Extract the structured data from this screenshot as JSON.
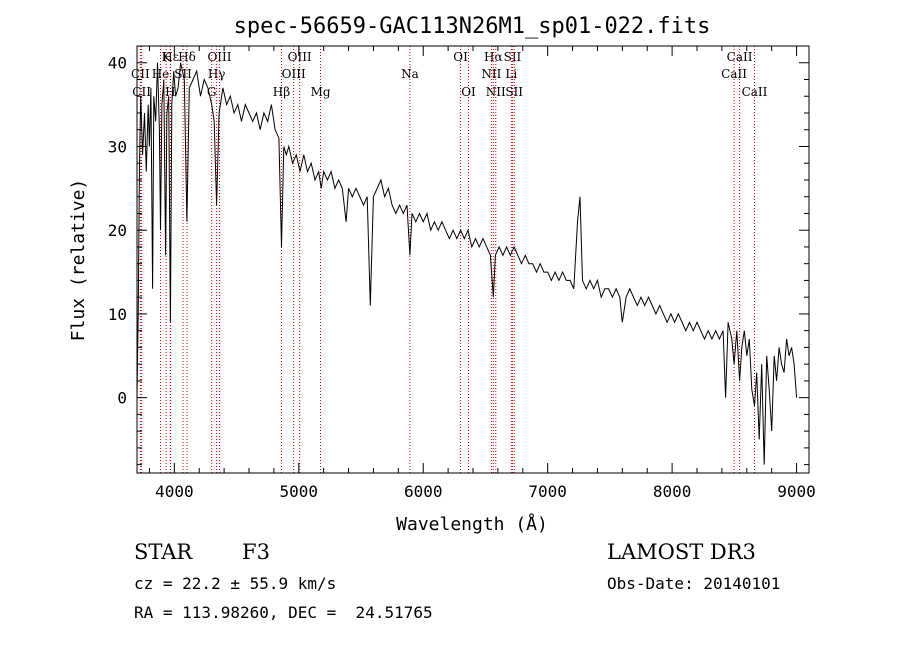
{
  "chart_data": {
    "type": "line",
    "title": "spec-56659-GAC113N26M1_sp01-022.fits",
    "xlabel": "Wavelength (Å)",
    "ylabel": "Flux (relative)",
    "xlim": [
      3700,
      9100
    ],
    "ylim": [
      -9,
      42
    ],
    "xticks": [
      4000,
      5000,
      6000,
      7000,
      8000,
      9000
    ],
    "yticks": [
      0,
      10,
      20,
      30,
      40
    ],
    "series": [
      {
        "name": "flux",
        "color": "#000000",
        "points": [
          [
            3700,
            0
          ],
          [
            3710,
            10
          ],
          [
            3720,
            28
          ],
          [
            3730,
            36
          ],
          [
            3745,
            29
          ],
          [
            3760,
            34
          ],
          [
            3775,
            27
          ],
          [
            3790,
            35
          ],
          [
            3800,
            30
          ],
          [
            3812,
            37
          ],
          [
            3825,
            13
          ],
          [
            3835,
            36
          ],
          [
            3850,
            33
          ],
          [
            3865,
            40
          ],
          [
            3880,
            32
          ],
          [
            3889,
            20
          ],
          [
            3900,
            35
          ],
          [
            3915,
            38
          ],
          [
            3930,
            17
          ],
          [
            3940,
            34
          ],
          [
            3955,
            36
          ],
          [
            3968,
            9
          ],
          [
            3980,
            35
          ],
          [
            3995,
            39
          ],
          [
            4010,
            36
          ],
          [
            4030,
            37
          ],
          [
            4050,
            40
          ],
          [
            4080,
            38
          ],
          [
            4101,
            21
          ],
          [
            4120,
            37
          ],
          [
            4150,
            38
          ],
          [
            4180,
            39
          ],
          [
            4210,
            36
          ],
          [
            4240,
            38
          ],
          [
            4270,
            37
          ],
          [
            4300,
            35
          ],
          [
            4320,
            33
          ],
          [
            4340,
            23
          ],
          [
            4360,
            34
          ],
          [
            4390,
            37
          ],
          [
            4420,
            35
          ],
          [
            4450,
            36
          ],
          [
            4480,
            34
          ],
          [
            4510,
            35
          ],
          [
            4540,
            33
          ],
          [
            4570,
            35
          ],
          [
            4600,
            34
          ],
          [
            4630,
            33
          ],
          [
            4660,
            34
          ],
          [
            4690,
            32
          ],
          [
            4720,
            34
          ],
          [
            4750,
            33
          ],
          [
            4780,
            35
          ],
          [
            4810,
            32
          ],
          [
            4840,
            31
          ],
          [
            4861,
            18
          ],
          [
            4880,
            30
          ],
          [
            4900,
            29
          ],
          [
            4920,
            30
          ],
          [
            4950,
            28
          ],
          [
            4980,
            29
          ],
          [
            5010,
            27
          ],
          [
            5040,
            29
          ],
          [
            5070,
            27
          ],
          [
            5100,
            28
          ],
          [
            5130,
            26
          ],
          [
            5160,
            27
          ],
          [
            5180,
            25
          ],
          [
            5200,
            27
          ],
          [
            5230,
            26
          ],
          [
            5260,
            27
          ],
          [
            5290,
            25
          ],
          [
            5320,
            26
          ],
          [
            5350,
            25
          ],
          [
            5380,
            21
          ],
          [
            5400,
            25
          ],
          [
            5430,
            24
          ],
          [
            5460,
            25
          ],
          [
            5490,
            24
          ],
          [
            5520,
            23
          ],
          [
            5550,
            24
          ],
          [
            5575,
            11
          ],
          [
            5600,
            24
          ],
          [
            5630,
            25
          ],
          [
            5660,
            26
          ],
          [
            5690,
            24
          ],
          [
            5720,
            25
          ],
          [
            5750,
            23
          ],
          [
            5780,
            22
          ],
          [
            5810,
            23
          ],
          [
            5840,
            22
          ],
          [
            5870,
            23
          ],
          [
            5893,
            17
          ],
          [
            5910,
            22
          ],
          [
            5940,
            21
          ],
          [
            5970,
            22
          ],
          [
            6000,
            21
          ],
          [
            6030,
            22
          ],
          [
            6060,
            20
          ],
          [
            6090,
            21
          ],
          [
            6120,
            20
          ],
          [
            6150,
            21
          ],
          [
            6180,
            20
          ],
          [
            6210,
            19
          ],
          [
            6240,
            20
          ],
          [
            6270,
            19
          ],
          [
            6300,
            20
          ],
          [
            6330,
            19
          ],
          [
            6360,
            20
          ],
          [
            6390,
            18
          ],
          [
            6420,
            19
          ],
          [
            6450,
            18
          ],
          [
            6480,
            19
          ],
          [
            6510,
            18
          ],
          [
            6540,
            17
          ],
          [
            6563,
            12
          ],
          [
            6580,
            17
          ],
          [
            6610,
            18
          ],
          [
            6640,
            17
          ],
          [
            6670,
            18
          ],
          [
            6700,
            17
          ],
          [
            6730,
            18
          ],
          [
            6760,
            17
          ],
          [
            6790,
            16
          ],
          [
            6820,
            17
          ],
          [
            6850,
            16
          ],
          [
            6880,
            16
          ],
          [
            6910,
            15
          ],
          [
            6940,
            16
          ],
          [
            6970,
            15
          ],
          [
            7000,
            15
          ],
          [
            7030,
            14
          ],
          [
            7060,
            15
          ],
          [
            7090,
            14
          ],
          [
            7120,
            15
          ],
          [
            7150,
            14
          ],
          [
            7180,
            14
          ],
          [
            7210,
            13
          ],
          [
            7240,
            21
          ],
          [
            7260,
            24
          ],
          [
            7280,
            14
          ],
          [
            7310,
            13
          ],
          [
            7340,
            14
          ],
          [
            7370,
            13
          ],
          [
            7400,
            14
          ],
          [
            7430,
            12
          ],
          [
            7460,
            13
          ],
          [
            7490,
            13
          ],
          [
            7520,
            12
          ],
          [
            7550,
            13
          ],
          [
            7580,
            12
          ],
          [
            7600,
            9
          ],
          [
            7630,
            12
          ],
          [
            7660,
            13
          ],
          [
            7690,
            12
          ],
          [
            7720,
            11
          ],
          [
            7750,
            12
          ],
          [
            7780,
            11
          ],
          [
            7810,
            12
          ],
          [
            7840,
            11
          ],
          [
            7870,
            10
          ],
          [
            7900,
            11
          ],
          [
            7930,
            10
          ],
          [
            7960,
            9
          ],
          [
            7990,
            10
          ],
          [
            8020,
            9
          ],
          [
            8050,
            10
          ],
          [
            8080,
            9
          ],
          [
            8110,
            8
          ],
          [
            8140,
            9
          ],
          [
            8170,
            8
          ],
          [
            8200,
            9
          ],
          [
            8230,
            8
          ],
          [
            8260,
            7
          ],
          [
            8290,
            8
          ],
          [
            8320,
            7
          ],
          [
            8350,
            8
          ],
          [
            8380,
            7
          ],
          [
            8410,
            8
          ],
          [
            8430,
            0
          ],
          [
            8450,
            9
          ],
          [
            8480,
            7
          ],
          [
            8498,
            4
          ],
          [
            8520,
            8
          ],
          [
            8542,
            2
          ],
          [
            8560,
            6
          ],
          [
            8580,
            8
          ],
          [
            8600,
            5
          ],
          [
            8620,
            7
          ],
          [
            8640,
            1
          ],
          [
            8662,
            -1
          ],
          [
            8680,
            3
          ],
          [
            8700,
            -5
          ],
          [
            8720,
            4
          ],
          [
            8740,
            -8
          ],
          [
            8760,
            5
          ],
          [
            8780,
            1
          ],
          [
            8800,
            -4
          ],
          [
            8820,
            5
          ],
          [
            8840,
            2
          ],
          [
            8860,
            6
          ],
          [
            8880,
            4
          ],
          [
            8900,
            3
          ],
          [
            8920,
            7
          ],
          [
            8940,
            5
          ],
          [
            8960,
            6
          ],
          [
            8980,
            4
          ],
          [
            9000,
            0
          ]
        ]
      }
    ],
    "lines": [
      {
        "label": "Hε",
        "wl": 3970,
        "row": 0
      },
      {
        "label": "K",
        "wl": 3934,
        "row": 0
      },
      {
        "label": "Hδ",
        "wl": 4102,
        "row": 0
      },
      {
        "label": "OIII",
        "wl": 4363,
        "row": 0
      },
      {
        "label": "OIII",
        "wl": 5007,
        "row": 0
      },
      {
        "label": "OI",
        "wl": 6300,
        "row": 0
      },
      {
        "label": "Hα",
        "wl": 6563,
        "row": 0
      },
      {
        "label": "SII",
        "wl": 6717,
        "row": 0
      },
      {
        "label": "CaII",
        "wl": 8542,
        "row": 0
      },
      {
        "label": "CII",
        "wl": 3727,
        "row": 1
      },
      {
        "label": "He",
        "wl": 3889,
        "row": 1
      },
      {
        "label": "SII",
        "wl": 4070,
        "row": 1
      },
      {
        "label": "Hγ",
        "wl": 4340,
        "row": 1
      },
      {
        "label": "OIII",
        "wl": 4959,
        "row": 1
      },
      {
        "label": "Na",
        "wl": 5893,
        "row": 1
      },
      {
        "label": "NII",
        "wl": 6548,
        "row": 1
      },
      {
        "label": "Li",
        "wl": 6708,
        "row": 1
      },
      {
        "label": "CaII",
        "wl": 8498,
        "row": 1
      },
      {
        "label": "CII",
        "wl": 3737,
        "row": 2
      },
      {
        "label": "H",
        "wl": 3968,
        "row": 2
      },
      {
        "label": "G",
        "wl": 4300,
        "row": 2
      },
      {
        "label": "Hβ",
        "wl": 4861,
        "row": 2
      },
      {
        "label": "Mg",
        "wl": 5175,
        "row": 2
      },
      {
        "label": "OI",
        "wl": 6364,
        "row": 2
      },
      {
        "label": "NII",
        "wl": 6583,
        "row": 2
      },
      {
        "label": "SII",
        "wl": 6731,
        "row": 2
      },
      {
        "label": "CaII",
        "wl": 8662,
        "row": 2
      }
    ],
    "line_color": "#cc0000"
  },
  "info": {
    "class": "STAR",
    "subclass": "F3",
    "survey": "LAMOST DR3",
    "cz": "cz = 22.2 ± 55.9 km/s",
    "obs_date": "Obs-Date: 20140101",
    "coords": "RA = 113.98260, DEC =  24.51765"
  }
}
